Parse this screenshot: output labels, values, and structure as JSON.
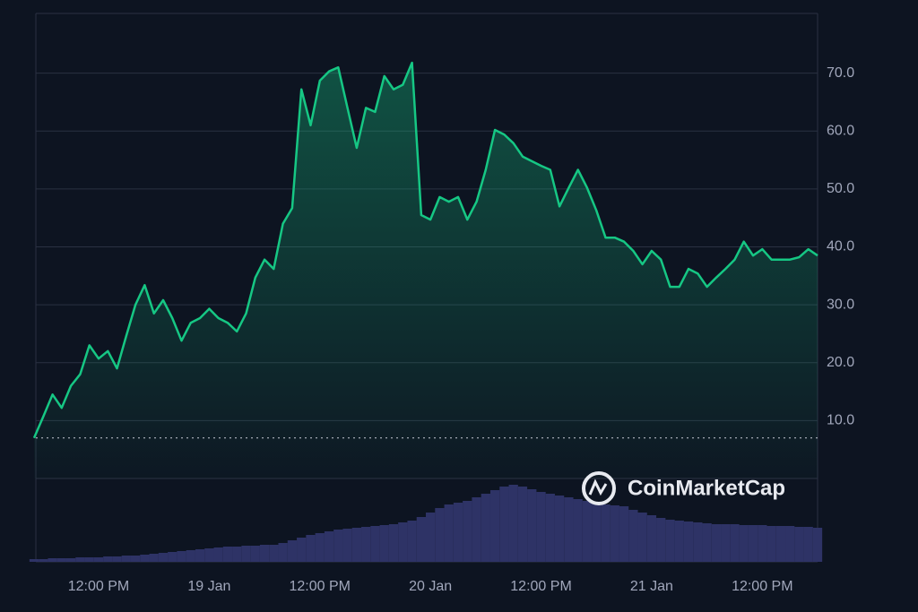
{
  "chart_data": {
    "type": "line",
    "watermark": "CoinMarketCap",
    "categories": [
      null,
      null,
      null,
      null,
      null,
      null,
      null,
      "12:00 PM",
      null,
      null,
      null,
      null,
      null,
      null,
      null,
      null,
      null,
      null,
      null,
      "19 Jan",
      null,
      null,
      null,
      null,
      null,
      null,
      null,
      null,
      null,
      null,
      null,
      "12:00 PM",
      null,
      null,
      null,
      null,
      null,
      null,
      null,
      null,
      null,
      null,
      null,
      "20 Jan",
      null,
      null,
      null,
      null,
      null,
      null,
      null,
      null,
      null,
      null,
      null,
      "12:00 PM",
      null,
      null,
      null,
      null,
      null,
      null,
      null,
      null,
      null,
      null,
      null,
      "21 Jan",
      null,
      null,
      null,
      null,
      null,
      null,
      null,
      null,
      null,
      null,
      null,
      "12:00 PM",
      null,
      null,
      null,
      null,
      null,
      null
    ],
    "series": [
      {
        "color": "#16c784",
        "values": [
          7.0,
          10.7,
          14.5,
          12.2,
          16,
          18,
          23,
          20.7,
          22,
          19,
          24.6,
          30,
          33.4,
          28.5,
          30.8,
          27.7,
          23.8,
          26.9,
          27.7,
          29.3,
          27.7,
          26.9,
          25.4,
          28.5,
          34.7,
          37.8,
          36.2,
          44,
          46.7,
          67.2,
          61,
          68.7,
          70.3,
          71,
          64,
          57.1,
          64,
          63.3,
          69.5,
          67.2,
          68,
          71.8,
          45.5,
          44.7,
          48.6,
          47.8,
          48.6,
          44.7,
          47.8,
          53.3,
          60.2,
          59.4,
          57.9,
          55.6,
          54.8,
          54,
          53.3,
          47,
          50.2,
          53.3,
          50.2,
          46.3,
          41.6,
          41.6,
          40.9,
          39.3,
          37,
          39.3,
          37.8,
          33.1,
          33.1,
          36.2,
          35.4,
          33.1,
          34.7,
          36.2,
          37.8,
          40.9,
          38.5,
          39.6,
          37.8,
          37.8,
          37.8,
          38.2,
          39.6,
          38.5
        ]
      },
      {
        "color": "#2e3366",
        "axis": "y2",
        "values": [
          3,
          3,
          4,
          4,
          4,
          5,
          5,
          5,
          6,
          6,
          7,
          7,
          8,
          9,
          10,
          11,
          12,
          13,
          14,
          15,
          16,
          17,
          17,
          18,
          18,
          19,
          19,
          21,
          24,
          27,
          30,
          32,
          34,
          36,
          37,
          38,
          39,
          40,
          41,
          42,
          44,
          46,
          50,
          55,
          60,
          64,
          66,
          68,
          72,
          76,
          80,
          84,
          86,
          84,
          81,
          78,
          76,
          74,
          72,
          70,
          68,
          66,
          64,
          63,
          62,
          58,
          55,
          52,
          49,
          47,
          46,
          45,
          44,
          43,
          42,
          42,
          42,
          41,
          41,
          41,
          40,
          40,
          40,
          39,
          39,
          38
        ]
      }
    ],
    "ylim": [
      0,
      80
    ],
    "yticks": [
      {
        "value": 10,
        "label": "10.0"
      },
      {
        "value": 20,
        "label": "20.0"
      },
      {
        "value": 30,
        "label": "30.0"
      },
      {
        "value": 40,
        "label": "40.0"
      },
      {
        "value": 50,
        "label": "50.0"
      },
      {
        "value": 60,
        "label": "60.0"
      },
      {
        "value": 70,
        "label": "70.0"
      }
    ],
    "y2lim": [
      0,
      90
    ],
    "grid": true
  }
}
